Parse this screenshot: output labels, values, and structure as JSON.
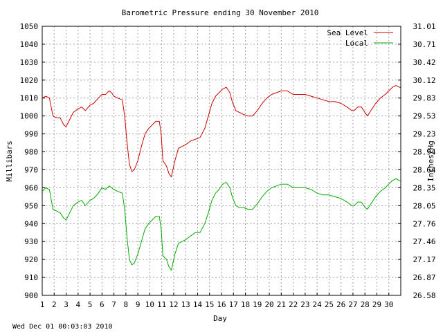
{
  "chart_data": {
    "type": "line",
    "title": "Barometric Pressure ending 30 November 2010",
    "xlabel": "Day",
    "ylabel_left": "Millibars",
    "ylabel_right": "Inches/Hg",
    "timestamp": "Wed Dec 01 00:03:03 2010",
    "xlim": [
      1,
      31
    ],
    "ylim": [
      900,
      1050
    ],
    "grid": true,
    "legend_position": "top-right",
    "x_ticks": [
      "1",
      "2",
      "3",
      "4",
      "5",
      "6",
      "7",
      "8",
      "9",
      "10",
      "11",
      "12",
      "13",
      "14",
      "15",
      "16",
      "17",
      "18",
      "19",
      "20",
      "21",
      "22",
      "23",
      "24",
      "25",
      "26",
      "27",
      "28",
      "29",
      "30"
    ],
    "y_ticks_left": [
      "900",
      "910",
      "920",
      "930",
      "940",
      "950",
      "960",
      "970",
      "980",
      "990",
      "1000",
      "1010",
      "1020",
      "1030",
      "1040",
      "1050"
    ],
    "y_ticks_right": [
      "26.58",
      "26.87",
      "27.17",
      "27.46",
      "27.76",
      "28.05",
      "28.35",
      "28.64",
      "28.94",
      "29.23",
      "29.53",
      "29.83",
      "30.12",
      "30.42",
      "30.71",
      "31.01"
    ],
    "series": [
      {
        "name": "Sea Level",
        "color": "#cc0000",
        "points": [
          [
            1.0,
            1010
          ],
          [
            1.3,
            1011
          ],
          [
            1.6,
            1010
          ],
          [
            1.9,
            1000
          ],
          [
            2.2,
            999
          ],
          [
            2.5,
            999
          ],
          [
            2.8,
            995
          ],
          [
            3.0,
            994
          ],
          [
            3.3,
            998
          ],
          [
            3.6,
            1002
          ],
          [
            4.0,
            1004
          ],
          [
            4.3,
            1005
          ],
          [
            4.6,
            1003
          ],
          [
            5.0,
            1006
          ],
          [
            5.3,
            1007
          ],
          [
            5.7,
            1010
          ],
          [
            6.0,
            1012
          ],
          [
            6.3,
            1012
          ],
          [
            6.6,
            1014
          ],
          [
            6.8,
            1013
          ],
          [
            7.0,
            1011
          ],
          [
            7.3,
            1010
          ],
          [
            7.7,
            1009
          ],
          [
            7.9,
            1000
          ],
          [
            8.1,
            985
          ],
          [
            8.3,
            973
          ],
          [
            8.5,
            969
          ],
          [
            8.7,
            970
          ],
          [
            9.0,
            975
          ],
          [
            9.3,
            983
          ],
          [
            9.6,
            990
          ],
          [
            9.9,
            993
          ],
          [
            10.2,
            995
          ],
          [
            10.5,
            997
          ],
          [
            10.8,
            997
          ],
          [
            10.95,
            990
          ],
          [
            11.1,
            975
          ],
          [
            11.4,
            972
          ],
          [
            11.6,
            968
          ],
          [
            11.8,
            966
          ],
          [
            12.1,
            975
          ],
          [
            12.4,
            982
          ],
          [
            12.7,
            983
          ],
          [
            13.0,
            984
          ],
          [
            13.4,
            986
          ],
          [
            13.8,
            987
          ],
          [
            14.2,
            988
          ],
          [
            14.6,
            993
          ],
          [
            14.9,
            1000
          ],
          [
            15.2,
            1007
          ],
          [
            15.5,
            1011
          ],
          [
            15.8,
            1013
          ],
          [
            16.1,
            1015
          ],
          [
            16.4,
            1016
          ],
          [
            16.7,
            1013
          ],
          [
            16.9,
            1008
          ],
          [
            17.2,
            1003
          ],
          [
            17.5,
            1002
          ],
          [
            17.8,
            1001
          ],
          [
            18.2,
            1000
          ],
          [
            18.6,
            1000
          ],
          [
            19.0,
            1003
          ],
          [
            19.4,
            1007
          ],
          [
            19.8,
            1010
          ],
          [
            20.2,
            1012
          ],
          [
            20.6,
            1013
          ],
          [
            21.0,
            1014
          ],
          [
            21.5,
            1014
          ],
          [
            22.0,
            1012
          ],
          [
            22.5,
            1012
          ],
          [
            23.0,
            1012
          ],
          [
            23.5,
            1011
          ],
          [
            24.0,
            1010
          ],
          [
            24.5,
            1009
          ],
          [
            25.0,
            1008
          ],
          [
            25.5,
            1008
          ],
          [
            26.0,
            1007
          ],
          [
            26.5,
            1005
          ],
          [
            26.9,
            1003
          ],
          [
            27.1,
            1003
          ],
          [
            27.4,
            1005
          ],
          [
            27.7,
            1005
          ],
          [
            28.0,
            1002
          ],
          [
            28.2,
            1000
          ],
          [
            28.5,
            1003
          ],
          [
            28.9,
            1007
          ],
          [
            29.3,
            1010
          ],
          [
            29.7,
            1012
          ],
          [
            30.0,
            1014
          ],
          [
            30.3,
            1016
          ],
          [
            30.6,
            1017
          ],
          [
            30.9,
            1016
          ],
          [
            31.0,
            1016
          ]
        ]
      },
      {
        "name": "Local",
        "color": "#00aa00",
        "points": [
          [
            1.0,
            958
          ],
          [
            1.3,
            960
          ],
          [
            1.6,
            959
          ],
          [
            1.9,
            948
          ],
          [
            2.2,
            947
          ],
          [
            2.5,
            946
          ],
          [
            2.8,
            943
          ],
          [
            3.0,
            942
          ],
          [
            3.3,
            946
          ],
          [
            3.6,
            950
          ],
          [
            4.0,
            952
          ],
          [
            4.3,
            953
          ],
          [
            4.6,
            950
          ],
          [
            5.0,
            953
          ],
          [
            5.3,
            954
          ],
          [
            5.7,
            957
          ],
          [
            6.0,
            960
          ],
          [
            6.3,
            959
          ],
          [
            6.6,
            961
          ],
          [
            6.8,
            960
          ],
          [
            7.0,
            959
          ],
          [
            7.3,
            958
          ],
          [
            7.7,
            957
          ],
          [
            7.9,
            948
          ],
          [
            8.1,
            932
          ],
          [
            8.3,
            920
          ],
          [
            8.5,
            917
          ],
          [
            8.7,
            918
          ],
          [
            9.0,
            923
          ],
          [
            9.3,
            930
          ],
          [
            9.6,
            937
          ],
          [
            9.9,
            940
          ],
          [
            10.2,
            942
          ],
          [
            10.5,
            944
          ],
          [
            10.8,
            944
          ],
          [
            10.95,
            937
          ],
          [
            11.1,
            922
          ],
          [
            11.4,
            920
          ],
          [
            11.6,
            916
          ],
          [
            11.8,
            914
          ],
          [
            12.1,
            923
          ],
          [
            12.4,
            929
          ],
          [
            12.7,
            930
          ],
          [
            13.0,
            931
          ],
          [
            13.4,
            933
          ],
          [
            13.8,
            935
          ],
          [
            14.2,
            935
          ],
          [
            14.6,
            940
          ],
          [
            14.9,
            946
          ],
          [
            15.2,
            953
          ],
          [
            15.5,
            957
          ],
          [
            15.8,
            959
          ],
          [
            16.1,
            962
          ],
          [
            16.4,
            963
          ],
          [
            16.7,
            960
          ],
          [
            16.9,
            955
          ],
          [
            17.2,
            950
          ],
          [
            17.5,
            949
          ],
          [
            17.8,
            949
          ],
          [
            18.2,
            948
          ],
          [
            18.6,
            948
          ],
          [
            19.0,
            951
          ],
          [
            19.4,
            955
          ],
          [
            19.8,
            958
          ],
          [
            20.2,
            960
          ],
          [
            20.6,
            961
          ],
          [
            21.0,
            962
          ],
          [
            21.5,
            962
          ],
          [
            22.0,
            960
          ],
          [
            22.5,
            960
          ],
          [
            23.0,
            960
          ],
          [
            23.5,
            959
          ],
          [
            24.0,
            957
          ],
          [
            24.5,
            956
          ],
          [
            25.0,
            956
          ],
          [
            25.5,
            955
          ],
          [
            26.0,
            954
          ],
          [
            26.5,
            952
          ],
          [
            26.9,
            950
          ],
          [
            27.1,
            950
          ],
          [
            27.4,
            952
          ],
          [
            27.7,
            952
          ],
          [
            28.0,
            949
          ],
          [
            28.2,
            948
          ],
          [
            28.5,
            951
          ],
          [
            28.9,
            955
          ],
          [
            29.3,
            958
          ],
          [
            29.7,
            960
          ],
          [
            30.0,
            962
          ],
          [
            30.3,
            964
          ],
          [
            30.6,
            965
          ],
          [
            30.9,
            964
          ],
          [
            31.0,
            964
          ]
        ]
      }
    ]
  }
}
